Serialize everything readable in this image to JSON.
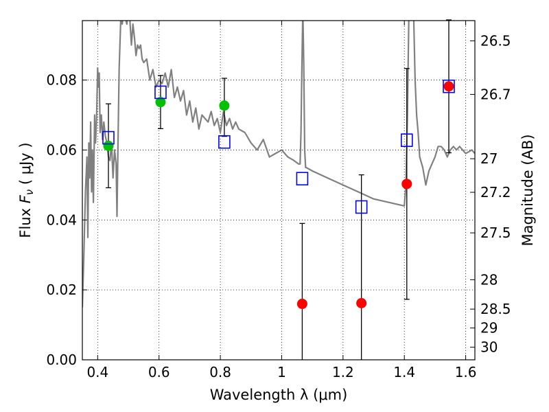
{
  "chart_data": {
    "type": "scatter",
    "xlabel": "Wavelength  λ (μm)",
    "ylabel": "Flux  F_ν  ( μJy )",
    "ylabel_right": "Magnitude (AB)",
    "xlim": [
      0.35,
      1.63
    ],
    "ylim": [
      0.0,
      0.097
    ],
    "grid": true,
    "x_ticks": [
      0.4,
      0.6,
      0.8,
      1.0,
      1.2,
      1.4,
      1.6
    ],
    "x_tick_labels": [
      "0.4",
      "0.6",
      "0.8",
      "1",
      "1.2",
      "1.4",
      "1.6"
    ],
    "y_ticks": [
      0.0,
      0.02,
      0.04,
      0.06,
      0.08
    ],
    "y_tick_labels": [
      "0.00",
      "0.02",
      "0.04",
      "0.06",
      "0.08"
    ],
    "right_ticks": [
      {
        "label": "26.5",
        "flux": 0.0912
      },
      {
        "label": "26.7",
        "flux": 0.0759
      },
      {
        "label": "27",
        "flux": 0.0575
      },
      {
        "label": "27.2",
        "flux": 0.0479
      },
      {
        "label": "27.5",
        "flux": 0.0363
      },
      {
        "label": "28",
        "flux": 0.0229
      },
      {
        "label": "28.5",
        "flux": 0.0145
      },
      {
        "label": "29",
        "flux": 0.0091
      },
      {
        "label": "30",
        "flux": 0.0036
      }
    ],
    "series": [
      {
        "kind": "model_sed",
        "color": "#808080",
        "x": [
          0.35,
          0.355,
          0.36,
          0.365,
          0.368,
          0.371,
          0.374,
          0.377,
          0.38,
          0.383,
          0.386,
          0.39,
          0.393,
          0.396,
          0.4,
          0.402,
          0.405,
          0.408,
          0.412,
          0.416,
          0.42,
          0.425,
          0.43,
          0.435,
          0.44,
          0.445,
          0.45,
          0.455,
          0.46,
          0.463,
          0.466,
          0.47,
          0.475,
          0.48,
          0.485,
          0.49,
          0.495,
          0.5,
          0.505,
          0.51,
          0.515,
          0.52,
          0.525,
          0.53,
          0.535,
          0.54,
          0.545,
          0.55,
          0.56,
          0.57,
          0.58,
          0.59,
          0.6,
          0.61,
          0.62,
          0.63,
          0.64,
          0.65,
          0.66,
          0.67,
          0.68,
          0.69,
          0.7,
          0.71,
          0.72,
          0.73,
          0.74,
          0.75,
          0.76,
          0.77,
          0.78,
          0.79,
          0.8,
          0.81,
          0.82,
          0.83,
          0.84,
          0.85,
          0.86,
          0.88,
          0.9,
          0.92,
          0.94,
          0.96,
          0.98,
          1.0,
          1.02,
          1.04,
          1.055,
          1.06,
          1.063,
          1.066,
          1.069,
          1.072,
          1.075,
          1.078,
          1.08,
          1.1,
          1.15,
          1.2,
          1.25,
          1.3,
          1.35,
          1.4,
          1.405,
          1.41,
          1.415,
          1.42,
          1.425,
          1.43,
          1.435,
          1.44,
          1.445,
          1.45,
          1.46,
          1.47,
          1.48,
          1.49,
          1.5,
          1.51,
          1.52,
          1.53,
          1.54,
          1.55,
          1.56,
          1.57,
          1.58,
          1.6,
          1.62,
          1.63
        ],
        "y": [
          0.015,
          0.03,
          0.048,
          0.058,
          0.035,
          0.062,
          0.052,
          0.068,
          0.048,
          0.06,
          0.045,
          0.07,
          0.062,
          0.068,
          0.0835,
          0.078,
          0.082,
          0.065,
          0.07,
          0.063,
          0.068,
          0.064,
          0.062,
          0.058,
          0.057,
          0.062,
          0.052,
          0.06,
          0.056,
          0.041,
          0.06,
          0.083,
          0.097,
          0.096,
          0.1,
          0.098,
          0.096,
          0.1,
          0.097,
          0.09,
          0.096,
          0.092,
          0.087,
          0.09,
          0.089,
          0.09,
          0.086,
          0.085,
          0.086,
          0.08,
          0.083,
          0.078,
          0.08,
          0.079,
          0.082,
          0.078,
          0.083,
          0.075,
          0.078,
          0.074,
          0.077,
          0.07,
          0.074,
          0.068,
          0.072,
          0.066,
          0.07,
          0.069,
          0.068,
          0.071,
          0.067,
          0.069,
          0.065,
          0.071,
          0.067,
          0.069,
          0.066,
          0.068,
          0.066,
          0.065,
          0.062,
          0.06,
          0.063,
          0.058,
          0.059,
          0.06,
          0.058,
          0.057,
          0.056,
          0.056,
          0.065,
          0.085,
          0.1,
          0.085,
          0.06,
          0.055,
          0.055,
          0.054,
          0.052,
          0.05,
          0.048,
          0.046,
          0.045,
          0.044,
          0.05,
          0.07,
          0.1,
          0.1,
          0.1,
          0.1,
          0.08,
          0.07,
          0.065,
          0.058,
          0.055,
          0.05,
          0.054,
          0.056,
          0.058,
          0.061,
          0.061,
          0.06,
          0.058,
          0.06,
          0.061,
          0.06,
          0.061,
          0.059,
          0.06,
          0.059
        ]
      },
      {
        "kind": "model_photometry",
        "marker": "open-square",
        "color": "#0000ff",
        "x": [
          0.435,
          0.605,
          0.813,
          1.067,
          1.26,
          1.408,
          1.545
        ],
        "y": [
          0.0635,
          0.0765,
          0.0623,
          0.0518,
          0.0437,
          0.0628,
          0.0782
        ]
      },
      {
        "kind": "detections",
        "marker": "filled-circle",
        "color": "#00c000",
        "x": [
          0.435,
          0.605,
          0.813
        ],
        "y": [
          0.0612,
          0.0737,
          0.0727
        ],
        "err_low": [
          0.012,
          0.0076,
          0.0088
        ],
        "err_high": [
          0.012,
          0.0076,
          0.0078
        ]
      },
      {
        "kind": "non_detections",
        "marker": "filled-circle",
        "color": "#ff0000",
        "x": [
          1.067,
          1.26,
          1.408,
          1.545
        ],
        "y": [
          0.016,
          0.0162,
          0.0503,
          0.0782
        ],
        "err_low": [
          0.023,
          0.0162,
          0.033,
          0.019
        ],
        "err_high": [
          0.023,
          0.0367,
          0.033,
          0.019
        ]
      }
    ]
  }
}
